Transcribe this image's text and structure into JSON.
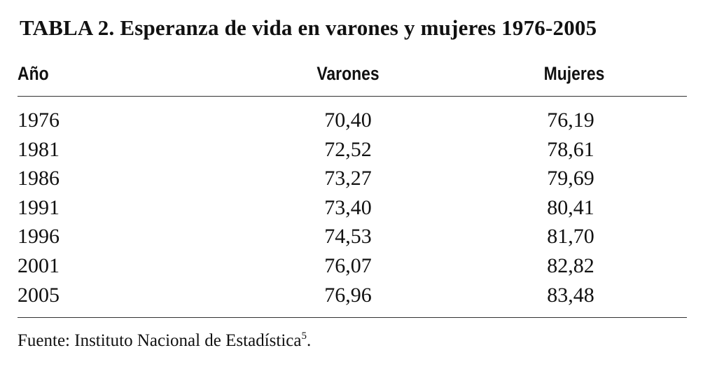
{
  "header": {
    "title": "TABLA 2. Esperanza de vida en varones y mujeres 1976-2005"
  },
  "table": {
    "columns": [
      "Año",
      "Varones",
      "Mujeres"
    ],
    "rows": [
      [
        "1976",
        "70,40",
        "76,19"
      ],
      [
        "1981",
        "72,52",
        "78,61"
      ],
      [
        "1986",
        "73,27",
        "79,69"
      ],
      [
        "1991",
        "73,40",
        "80,41"
      ],
      [
        "1996",
        "74,53",
        "81,70"
      ],
      [
        "2001",
        "76,07",
        "82,82"
      ],
      [
        "2005",
        "76,96",
        "83,48"
      ]
    ]
  },
  "footer": {
    "source": "Fuente: Instituto Nacional de Estadística",
    "note": "5",
    "end": "."
  }
}
